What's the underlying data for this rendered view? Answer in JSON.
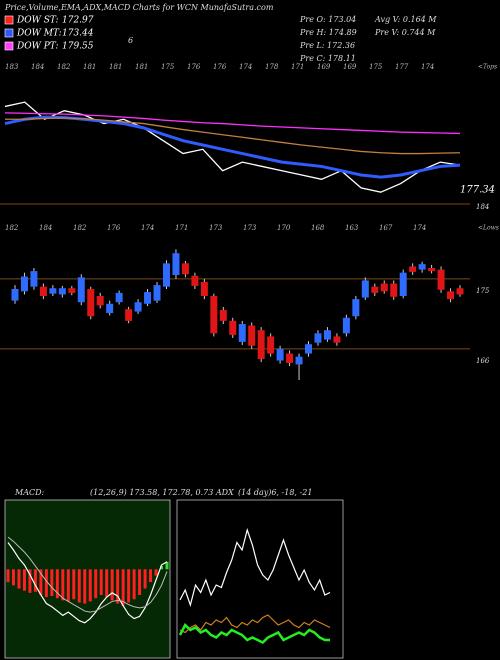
{
  "header": {
    "title": "Price,Volume,EMA,ADX,MACD Charts for WCN  MunafaSutra.com",
    "note": "6"
  },
  "legend": [
    {
      "label": "DOW ST:",
      "value": 172.97,
      "color": "#ff2020"
    },
    {
      "label": "DOW MT:",
      "value": 173.44,
      "color": "#3355ff"
    },
    {
      "label": "DOW PT:",
      "value": 179.55,
      "color": "#ff40ff"
    }
  ],
  "quote": [
    "Pre  O: 173.04",
    "Pre  H: 174.89",
    "Pre  L: 172.36",
    "Pre  C: 178.11",
    "Avg V: 0.164  M",
    "Pre  V: 0.744  M"
  ],
  "indicators": {
    "macd_label": "MACD:",
    "macd_text": "(12,26,9) 173.58, 172.78, 0.73 ADX",
    "adx_text": "(14 day)6, -18, -21"
  },
  "chart_data": [
    {
      "type": "line",
      "top_labels": [
        183,
        184,
        182,
        181,
        181,
        181,
        175,
        176,
        176,
        174,
        178,
        171,
        169,
        169,
        175,
        177,
        174
      ],
      "top_caption": "<Tops",
      "ref_label": "184",
      "last_label": "177.34",
      "ylim": [
        168,
        196
      ],
      "series": [
        {
          "name": "Price",
          "color": "#ffffff",
          "values": [
            191,
            192,
            188,
            190,
            189,
            187,
            188,
            186,
            183,
            180,
            181,
            176,
            178,
            177,
            176,
            175,
            174,
            176,
            172,
            171,
            173,
            176,
            178,
            177.3
          ]
        },
        {
          "name": "EMA short",
          "color": "#2f5bff",
          "values": [
            187,
            188,
            188.5,
            188.4,
            188,
            187.5,
            187,
            186,
            184.5,
            183,
            182,
            181,
            180,
            179,
            178,
            177.5,
            177,
            176,
            175,
            174.5,
            175,
            176,
            177,
            177.3
          ]
        },
        {
          "name": "EMA mid",
          "color": "#c08040",
          "values": [
            188,
            188,
            188.2,
            188.3,
            188.1,
            187.8,
            187.4,
            187,
            186.3,
            185.6,
            185,
            184.4,
            183.8,
            183.2,
            182.6,
            182,
            181.5,
            181,
            180.5,
            180.2,
            180,
            180,
            180.1,
            180.2
          ]
        },
        {
          "name": "EMA long",
          "color": "#ff30ff",
          "values": [
            189.5,
            189.4,
            189.3,
            189.2,
            189,
            188.8,
            188.5,
            188.2,
            187.8,
            187.5,
            187.2,
            187,
            186.7,
            186.4,
            186.2,
            186,
            185.8,
            185.6,
            185.4,
            185.2,
            185,
            184.9,
            184.8,
            184.7
          ]
        }
      ]
    },
    {
      "type": "candlestick",
      "low_labels": [
        182,
        184,
        182,
        176,
        174,
        171,
        173,
        173,
        170,
        168,
        163,
        167,
        174
      ],
      "low_caption": "<Lows",
      "up_color": "#2f6bff",
      "down_color": "#e01515",
      "ylim": [
        162,
        180
      ],
      "yticks": [
        175,
        166
      ],
      "open": [
        172.2,
        173.4,
        174.0,
        174.0,
        173.1,
        173.0,
        173.8,
        172.0,
        173.7,
        172.8,
        170.6,
        172.0,
        171.1,
        170.8,
        171.8,
        172.2,
        174.0,
        175.5,
        177.0,
        175.4,
        174.6,
        172.8,
        171.0,
        169.6,
        166.9,
        169.0,
        168.4,
        167.6,
        164.5,
        165.4,
        164.0,
        165.4,
        166.8,
        167.2,
        167.6,
        168.0,
        170.2,
        172.6,
        174.0,
        174.4,
        174.4,
        172.8,
        176.6,
        176.2,
        176.4,
        176.2,
        173.4,
        173.8
      ],
      "high": [
        174.2,
        175.8,
        176.4,
        174.4,
        174.2,
        174.1,
        174.1,
        175.6,
        174.0,
        173.2,
        172.2,
        173.5,
        171.4,
        172.4,
        173.7,
        174.6,
        177.4,
        178.8,
        177.3,
        175.8,
        175.0,
        173.1,
        171.4,
        170.0,
        169.6,
        169.4,
        168.8,
        168.0,
        166.4,
        165.8,
        165.4,
        167.0,
        168.4,
        168.8,
        168.0,
        170.4,
        172.8,
        175.2,
        174.4,
        174.8,
        174.8,
        176.2,
        177.0,
        177.2,
        176.8,
        176.6,
        173.8,
        174.2
      ],
      "low": [
        171.8,
        173.0,
        173.6,
        172.4,
        172.8,
        172.6,
        172.9,
        171.6,
        169.8,
        171.2,
        170.3,
        171.7,
        169.3,
        170.5,
        171.5,
        171.9,
        173.7,
        175.0,
        175.2,
        173.7,
        172.4,
        167.6,
        169.2,
        167.4,
        166.5,
        166.0,
        164.3,
        165.0,
        164.1,
        163.8,
        162.0,
        165.0,
        166.4,
        166.9,
        166.4,
        167.6,
        169.8,
        172.3,
        172.8,
        173.1,
        172.3,
        172.5,
        175.5,
        175.8,
        175.7,
        173.2,
        172.0,
        172.7
      ],
      "close": [
        173.7,
        175.3,
        176.0,
        172.8,
        173.8,
        173.8,
        173.2,
        175.2,
        170.2,
        171.6,
        171.8,
        173.2,
        169.6,
        172.0,
        173.3,
        174.2,
        177.0,
        178.3,
        175.6,
        174.1,
        172.8,
        168.0,
        169.6,
        167.8,
        169.2,
        166.4,
        164.7,
        165.4,
        166.0,
        164.2,
        165.0,
        166.6,
        168.0,
        168.4,
        166.8,
        170.0,
        172.4,
        174.8,
        173.2,
        173.4,
        172.7,
        175.8,
        175.9,
        176.9,
        176.0,
        173.6,
        172.4,
        173.0
      ]
    },
    {
      "type": "macd",
      "ylim": [
        -8,
        6
      ],
      "histogram": [
        -1.2,
        -1.5,
        -1.8,
        -2.0,
        -2.2,
        -2.1,
        -2.4,
        -2.6,
        -2.5,
        -2.7,
        -2.9,
        -3.0,
        -2.8,
        -3.1,
        -3.2,
        -3.0,
        -2.7,
        -2.4,
        -2.6,
        -2.9,
        -3.2,
        -3.4,
        -3.1,
        -2.8,
        -2.4,
        -1.8,
        -1.2,
        -0.6,
        0.3,
        0.7
      ],
      "macd": [
        2.5,
        1.8,
        1.0,
        0.4,
        -0.5,
        -1.5,
        -2.4,
        -3.2,
        -3.5,
        -3.9,
        -4.3,
        -4.0,
        -4.4,
        -4.8,
        -5.0,
        -4.6,
        -4.0,
        -3.2,
        -2.6,
        -2.2,
        -2.5,
        -3.4,
        -4.2,
        -4.6,
        -4.4,
        -3.6,
        -2.4,
        -1.0,
        0.4,
        0.7
      ],
      "signal": [
        3.0,
        2.6,
        2.1,
        1.6,
        1.0,
        0.3,
        -0.4,
        -1.1,
        -1.7,
        -2.2,
        -2.7,
        -3.0,
        -3.3,
        -3.6,
        -3.9,
        -4.0,
        -3.9,
        -3.6,
        -3.3,
        -3.0,
        -2.9,
        -3.0,
        -3.3,
        -3.5,
        -3.6,
        -3.5,
        -3.1,
        -2.4,
        -1.5,
        -0.2
      ]
    },
    {
      "type": "adx",
      "ylim": [
        0,
        60
      ],
      "series": [
        {
          "name": "DI",
          "color": "#ffffff",
          "values": [
            22,
            26,
            20,
            28,
            25,
            30,
            24,
            28,
            27,
            33,
            38,
            45,
            42,
            50,
            44,
            36,
            32,
            30,
            34,
            40,
            46,
            40,
            35,
            30,
            34,
            29,
            26,
            30,
            24,
            25
          ]
        },
        {
          "name": "DI2",
          "color": "#d08020",
          "values": [
            10,
            9,
            11,
            12,
            10,
            13,
            12,
            14,
            13,
            15,
            12,
            11,
            13,
            12,
            14,
            13,
            15,
            16,
            14,
            12,
            13,
            14,
            12,
            11,
            13,
            12,
            14,
            13,
            12,
            11
          ]
        },
        {
          "name": "ADX",
          "color": "#22ee22",
          "values": [
            8,
            12,
            10,
            11,
            9,
            10,
            8,
            7,
            9,
            8,
            10,
            9,
            8,
            6,
            7,
            6,
            5,
            7,
            8,
            9,
            6,
            7,
            8,
            9,
            8,
            10,
            9,
            7,
            6,
            6
          ]
        }
      ]
    }
  ]
}
